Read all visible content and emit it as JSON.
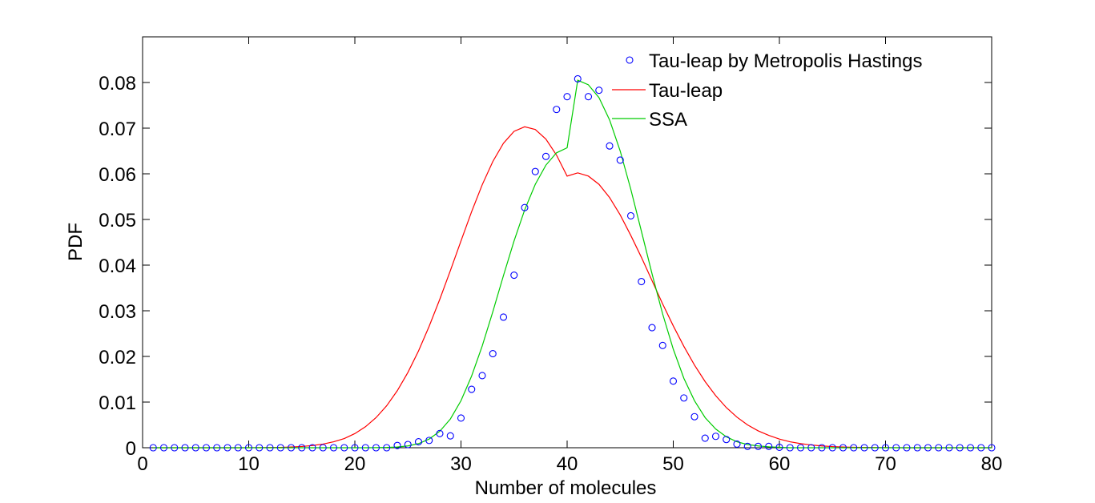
{
  "chart_data": {
    "type": "line",
    "xlabel": "Number of molecules",
    "ylabel": "PDF",
    "xlim": [
      0,
      80
    ],
    "ylim": [
      0,
      0.09
    ],
    "x_ticks": [
      0,
      10,
      20,
      30,
      40,
      50,
      60,
      70,
      80
    ],
    "x_tick_labels": [
      "0",
      "10",
      "20",
      "30",
      "40",
      "50",
      "60",
      "70",
      "80"
    ],
    "y_ticks": [
      0,
      0.01,
      0.02,
      0.03,
      0.04,
      0.05,
      0.06,
      0.07,
      0.08
    ],
    "y_tick_labels": [
      "0",
      "0.01",
      "0.02",
      "0.03",
      "0.04",
      "0.05",
      "0.06",
      "0.07",
      "0.08"
    ],
    "grid": false,
    "legend_position": "top-right",
    "series": [
      {
        "name": "Tau-leap by Metropolis Hastings",
        "style": "markers",
        "marker": "circle",
        "color": "#0000ff",
        "x": [
          1,
          2,
          3,
          4,
          5,
          6,
          7,
          8,
          9,
          10,
          11,
          12,
          13,
          14,
          15,
          16,
          17,
          18,
          19,
          20,
          21,
          22,
          23,
          24,
          25,
          26,
          27,
          28,
          29,
          30,
          31,
          32,
          33,
          34,
          35,
          36,
          37,
          38,
          39,
          40,
          41,
          42,
          43,
          44,
          45,
          46,
          47,
          48,
          49,
          50,
          51,
          52,
          53,
          54,
          55,
          56,
          57,
          58,
          59,
          60,
          61,
          62,
          63,
          64,
          65,
          66,
          67,
          68,
          69,
          70,
          71,
          72,
          73,
          74,
          75,
          76,
          77,
          78,
          79,
          80
        ],
        "y": [
          0,
          0,
          0,
          0,
          0,
          0,
          0,
          0,
          0,
          0,
          0,
          0,
          0,
          0,
          0,
          0,
          0,
          0,
          0,
          0,
          0,
          0,
          0,
          0.0005,
          0.0007,
          0.0013,
          0.0016,
          0.0031,
          0.0026,
          0.0065,
          0.0128,
          0.0158,
          0.0206,
          0.0286,
          0.0378,
          0.0526,
          0.0605,
          0.0638,
          0.0741,
          0.0769,
          0.0808,
          0.0769,
          0.0783,
          0.0661,
          0.063,
          0.0508,
          0.0364,
          0.0263,
          0.0224,
          0.0146,
          0.0109,
          0.0068,
          0.0021,
          0.0025,
          0.0018,
          0.0008,
          0.0003,
          0.0003,
          0.0003,
          0.0001,
          0,
          0,
          0,
          0,
          0,
          0,
          0,
          0,
          0,
          0,
          0,
          0,
          0,
          0,
          0,
          0,
          0,
          0,
          0,
          0
        ]
      },
      {
        "name": "Tau-leap",
        "style": "line",
        "color": "#ff0000",
        "x": [
          1,
          2,
          3,
          4,
          5,
          6,
          7,
          8,
          9,
          10,
          11,
          12,
          13,
          14,
          15,
          16,
          17,
          18,
          19,
          20,
          21,
          22,
          23,
          24,
          25,
          26,
          27,
          28,
          29,
          30,
          31,
          32,
          33,
          34,
          35,
          36,
          37,
          38,
          39,
          40,
          41,
          42,
          43,
          44,
          45,
          46,
          47,
          48,
          49,
          50,
          51,
          52,
          53,
          54,
          55,
          56,
          57,
          58,
          59,
          60,
          61,
          62,
          63,
          64,
          65,
          66,
          67,
          68,
          69,
          70,
          71,
          72,
          73,
          74,
          75,
          76,
          77,
          78,
          79,
          80
        ],
        "y": [
          0,
          0,
          0,
          0,
          0,
          0,
          0,
          0,
          0,
          1e-05,
          2e-05,
          4e-05,
          8e-05,
          0.00015,
          0.00027,
          0.00048,
          0.0008,
          0.0013,
          0.002,
          0.0031,
          0.0046,
          0.0066,
          0.0092,
          0.0125,
          0.0165,
          0.0212,
          0.0266,
          0.0325,
          0.0388,
          0.0453,
          0.0517,
          0.0576,
          0.0627,
          0.0667,
          0.0693,
          0.0703,
          0.0697,
          0.0676,
          0.0641,
          0.0595,
          0.0602,
          0.0595,
          0.0577,
          0.0548,
          0.051,
          0.0465,
          0.0417,
          0.0366,
          0.0315,
          0.0267,
          0.0222,
          0.0181,
          0.0145,
          0.0114,
          0.0088,
          0.0067,
          0.005,
          0.0037,
          0.0027,
          0.0019,
          0.0013,
          0.0009,
          0.0006,
          0.0004,
          0.00025,
          0.00016,
          0.0001,
          6e-05,
          4e-05,
          2e-05,
          1e-05,
          0,
          0,
          0,
          0,
          0,
          0,
          0,
          0,
          0
        ]
      },
      {
        "name": "SSA",
        "style": "line",
        "color": "#00cc00",
        "x": [
          1,
          2,
          3,
          4,
          5,
          6,
          7,
          8,
          9,
          10,
          11,
          12,
          13,
          14,
          15,
          16,
          17,
          18,
          19,
          20,
          21,
          22,
          23,
          24,
          25,
          26,
          27,
          28,
          29,
          30,
          31,
          32,
          33,
          34,
          35,
          36,
          37,
          38,
          39,
          40,
          41,
          42,
          43,
          44,
          45,
          46,
          47,
          48,
          49,
          50,
          51,
          52,
          53,
          54,
          55,
          56,
          57,
          58,
          59,
          60,
          61,
          62,
          63,
          64,
          65,
          66,
          67,
          68,
          69,
          70,
          71,
          72,
          73,
          74,
          75,
          76,
          77,
          78,
          79,
          80
        ],
        "y": [
          0,
          0,
          0,
          0,
          0,
          0,
          0,
          0,
          0,
          0,
          0,
          0,
          0,
          0,
          0,
          0,
          0,
          0,
          0,
          0,
          0,
          2e-05,
          6e-05,
          0.00016,
          0.0004,
          0.0009,
          0.0019,
          0.0036,
          0.0063,
          0.0103,
          0.0157,
          0.0223,
          0.0298,
          0.0377,
          0.0453,
          0.0521,
          0.0577,
          0.0619,
          0.0646,
          0.0657,
          0.0805,
          0.0795,
          0.0767,
          0.0718,
          0.065,
          0.0566,
          0.0474,
          0.0381,
          0.0293,
          0.0216,
          0.0152,
          0.0103,
          0.0066,
          0.0041,
          0.0024,
          0.0013,
          0.0007,
          0.0004,
          0.0002,
          0.0001,
          0,
          0,
          0,
          0,
          0,
          0,
          0,
          0,
          0,
          0,
          0,
          0,
          0,
          0,
          0,
          0,
          0,
          0,
          0,
          0
        ]
      }
    ]
  }
}
